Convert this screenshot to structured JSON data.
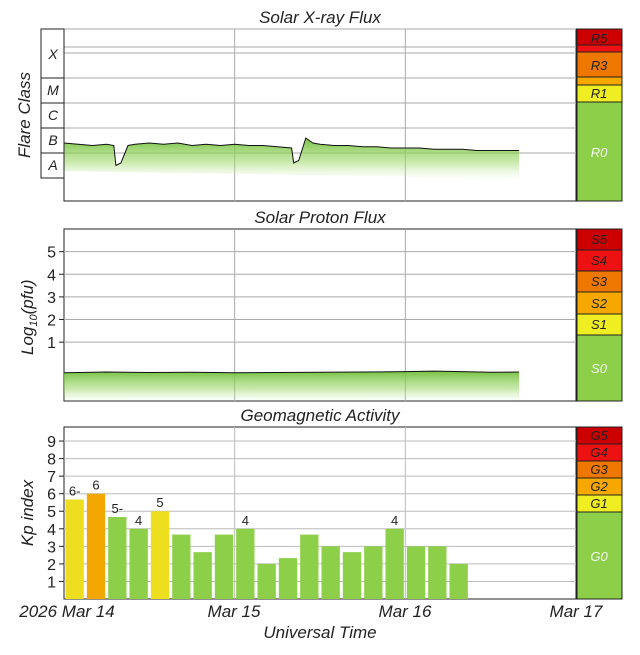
{
  "panels": {
    "xray": {
      "title": "Solar X-ray Flux",
      "ylabel": "Flare Class",
      "classes": [
        "X",
        "M",
        "C",
        "B",
        "A"
      ]
    },
    "proton": {
      "title": "Solar Proton Flux",
      "ylabel_main": "Log",
      "ylabel_sub": "10",
      "ylabel_rest": "(pfu)",
      "ticks": [
        "5",
        "4",
        "3",
        "2",
        "1"
      ]
    },
    "kp": {
      "title": "Geomagnetic Activity",
      "ylabel": "Kp index",
      "ticks": [
        "9",
        "8",
        "7",
        "6",
        "5",
        "4",
        "3",
        "2",
        "1"
      ]
    }
  },
  "scales": {
    "radio": [
      "R5",
      "R3",
      "R1",
      "R0"
    ],
    "solar": [
      "S5",
      "S4",
      "S3",
      "S2",
      "S1",
      "S0"
    ],
    "geo": [
      "G5",
      "G4",
      "G3",
      "G2",
      "G1",
      "G0"
    ]
  },
  "colors": {
    "extreme": "#cc0000",
    "severe": "#ee1111",
    "strong": "#ee7700",
    "moderate": "#f7a800",
    "minor": "#eeee22",
    "quiet": "#8ecf4a",
    "bar_green": "#8ecf4a",
    "bar_yellow": "#eede20",
    "bar_orange": "#f2a800"
  },
  "xaxis": {
    "title": "Universal Time",
    "labels": [
      "2026 Mar 14",
      "Mar 15",
      "Mar 16",
      "Mar 17"
    ]
  },
  "chart_data": [
    {
      "type": "area",
      "title": "Solar X-ray Flux",
      "ylabel": "Flare Class",
      "y_scale": "log",
      "y_categories": [
        "A",
        "B",
        "C",
        "M",
        "X"
      ],
      "x_range_days": [
        "2026-03-14",
        "2026-03-17"
      ],
      "series": [
        {
          "x_hours": [
            0,
            2,
            4,
            6,
            7,
            7.3,
            8,
            9,
            10,
            12,
            14,
            16,
            18,
            20,
            22,
            24,
            26,
            28,
            30,
            32,
            32.3,
            33,
            34,
            35,
            36,
            38,
            40,
            42,
            44,
            46,
            48,
            50,
            52,
            54,
            56,
            58,
            60,
            62,
            64
          ],
          "y_class_level": [
            2.4,
            2.35,
            2.3,
            2.35,
            2.3,
            1.5,
            1.6,
            2.3,
            2.35,
            2.4,
            2.35,
            2.4,
            2.3,
            2.35,
            2.3,
            2.35,
            2.3,
            2.3,
            2.25,
            2.2,
            1.6,
            1.7,
            2.6,
            2.4,
            2.35,
            2.3,
            2.3,
            2.25,
            2.25,
            2.2,
            2.2,
            2.2,
            2.15,
            2.15,
            2.15,
            2.1,
            2.1,
            2.1,
            2.1
          ]
        }
      ]
    },
    {
      "type": "area",
      "title": "Solar Proton Flux",
      "ylabel": "Log10(pfu)",
      "ylim": [
        -1.6,
        6
      ],
      "yticks": [
        1,
        2,
        3,
        4,
        5
      ],
      "x_range_days": [
        "2026-03-14",
        "2026-03-17"
      ],
      "series": [
        {
          "x_hours": [
            0,
            6,
            12,
            18,
            24,
            30,
            36,
            42,
            48,
            52,
            56,
            60,
            64
          ],
          "y_log_pfu": [
            -0.35,
            -0.32,
            -0.34,
            -0.33,
            -0.35,
            -0.34,
            -0.33,
            -0.32,
            -0.3,
            -0.28,
            -0.3,
            -0.33,
            -0.32
          ]
        }
      ]
    },
    {
      "type": "bar",
      "title": "Geomagnetic Activity",
      "ylabel": "Kp index",
      "ylim": [
        0,
        9.8
      ],
      "yticks": [
        1,
        2,
        3,
        4,
        5,
        6,
        7,
        8,
        9
      ],
      "x_range_days": [
        "2026-03-14",
        "2026-03-17"
      ],
      "bar_hours": 3,
      "values": [
        5.67,
        6.0,
        4.67,
        4.0,
        5.0,
        3.67,
        2.67,
        3.67,
        4.0,
        2.0,
        2.33,
        3.67,
        3.0,
        2.67,
        3.0,
        4.0,
        3.0,
        3.0,
        2.0
      ],
      "labels": [
        "6-",
        "6",
        "5-",
        "4",
        "5",
        "",
        "",
        "",
        "4",
        "",
        "",
        "",
        "",
        "",
        "",
        "4",
        "",
        "",
        ""
      ]
    }
  ]
}
